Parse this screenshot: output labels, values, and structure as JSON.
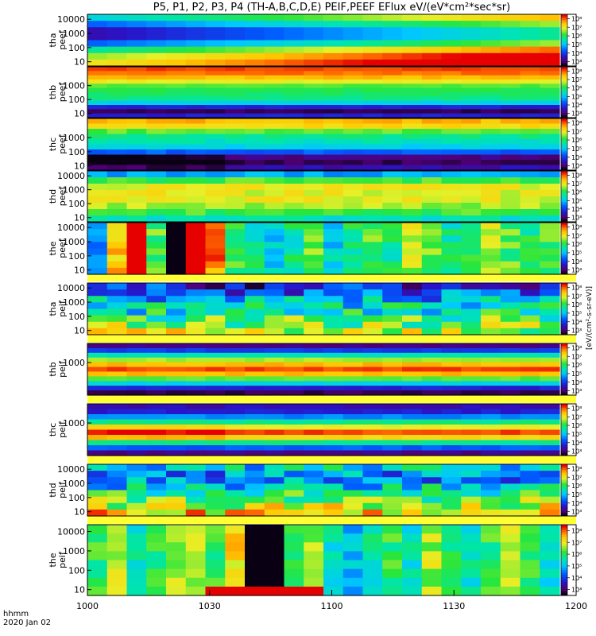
{
  "title": "P5, P1, P2, P3, P4 (TH-A,B,C,D,E) PEIF,PEEF EFlux eV/(eV*cm²*sec*sr)",
  "footer": {
    "line1": "hhmm",
    "line2": "2020 Jan 02"
  },
  "colorbar_label": "[eV/(cm²-s-sr-eV)]",
  "colorbar_ticks": [
    "10³",
    "10⁴",
    "10⁵",
    "10⁶",
    "10⁷",
    "10⁸"
  ],
  "chart_data": {
    "type": "heatmap",
    "x_ticks": [
      "1000",
      "1030",
      "1100",
      "1130",
      "1200"
    ],
    "y_scale": "log",
    "panels": [
      {
        "label": [
          "tha",
          "peef"
        ],
        "yticks": [
          "10",
          "100",
          "1000",
          "10000"
        ],
        "rows": [
          0.55,
          0.45,
          0.35,
          0.35,
          0.45,
          0.6,
          0.7,
          0.75
        ],
        "time_profile": "smooth_up",
        "cmin": 0.2,
        "cmax": 0.85
      },
      {
        "label": [
          "thb",
          "peef"
        ],
        "yticks": [
          "10",
          "100",
          "1000"
        ],
        "rows": [
          0.95,
          0.92,
          0.85,
          0.75,
          0.65,
          0.6,
          0.58,
          0.55,
          0.45,
          0.2,
          0.05,
          0.2
        ],
        "time_profile": "flat",
        "cmin": 0.0,
        "cmax": 1.0
      },
      {
        "label": [
          "thc",
          "peef"
        ],
        "yticks": [
          "10",
          "100",
          "1000"
        ],
        "rows": [
          0.85,
          0.8,
          0.65,
          0.55,
          0.5,
          0.45,
          0.3,
          0.1,
          0.05,
          0.15
        ],
        "time_profile": "step_bottom",
        "cmin": 0.0,
        "cmax": 1.0
      },
      {
        "label": [
          "thd",
          "peef"
        ],
        "yticks": [
          "10",
          "100",
          "1000",
          "10000"
        ],
        "rows": [
          0.55,
          0.65,
          0.7,
          0.7,
          0.7,
          0.68,
          0.65,
          0.6
        ],
        "time_profile": "flat",
        "cmin": 0.4,
        "cmax": 0.8
      },
      {
        "label": [
          "the",
          "peef"
        ],
        "yticks": [
          "10",
          "100",
          "1000",
          "10000"
        ],
        "rows": [
          0.5,
          0.55,
          0.55,
          0.55,
          0.55,
          0.55,
          0.55,
          0.5
        ],
        "time_profile": "the_pattern",
        "cmin": 0.2,
        "cmax": 0.75
      },
      {
        "label": [
          "tha",
          "peif"
        ],
        "yticks": [
          "10",
          "100",
          "1000",
          "10000"
        ],
        "rows": [
          0.15,
          0.2,
          0.25,
          0.3,
          0.3,
          0.35,
          0.38,
          0.4
        ],
        "time_profile": "noisy",
        "cmin": 0.05,
        "cmax": 0.55
      },
      {
        "label": [
          "thb",
          "peif"
        ],
        "yticks": [
          "1000"
        ],
        "rows": [
          0.1,
          0.25,
          0.5,
          0.7,
          0.85,
          0.95,
          0.85,
          0.65,
          0.45,
          0.2,
          0.05
        ],
        "time_profile": "flat",
        "cmin": 0.0,
        "cmax": 1.0
      },
      {
        "label": [
          "thc",
          "peif"
        ],
        "yticks": [
          "1000"
        ],
        "rows": [
          0.15,
          0.2,
          0.35,
          0.55,
          0.75,
          0.95,
          0.8,
          0.55,
          0.3,
          0.1
        ],
        "time_profile": "step_early",
        "cmin": 0.0,
        "cmax": 1.0
      },
      {
        "label": [
          "thd",
          "peif"
        ],
        "yticks": [
          "10",
          "100",
          "1000",
          "10000"
        ],
        "rows": [
          0.4,
          0.35,
          0.35,
          0.4,
          0.45,
          0.5,
          0.55,
          0.6
        ],
        "time_profile": "noisy",
        "cmin": 0.15,
        "cmax": 0.7
      },
      {
        "label": [
          "the",
          "peif"
        ],
        "yticks": [
          "10",
          "100",
          "1000",
          "10000"
        ],
        "rows": [
          0.55,
          0.55,
          0.55,
          0.55,
          0.55,
          0.55,
          0.55,
          0.55
        ],
        "time_profile": "the_ion",
        "cmin": 0.25,
        "cmax": 0.75
      }
    ]
  }
}
